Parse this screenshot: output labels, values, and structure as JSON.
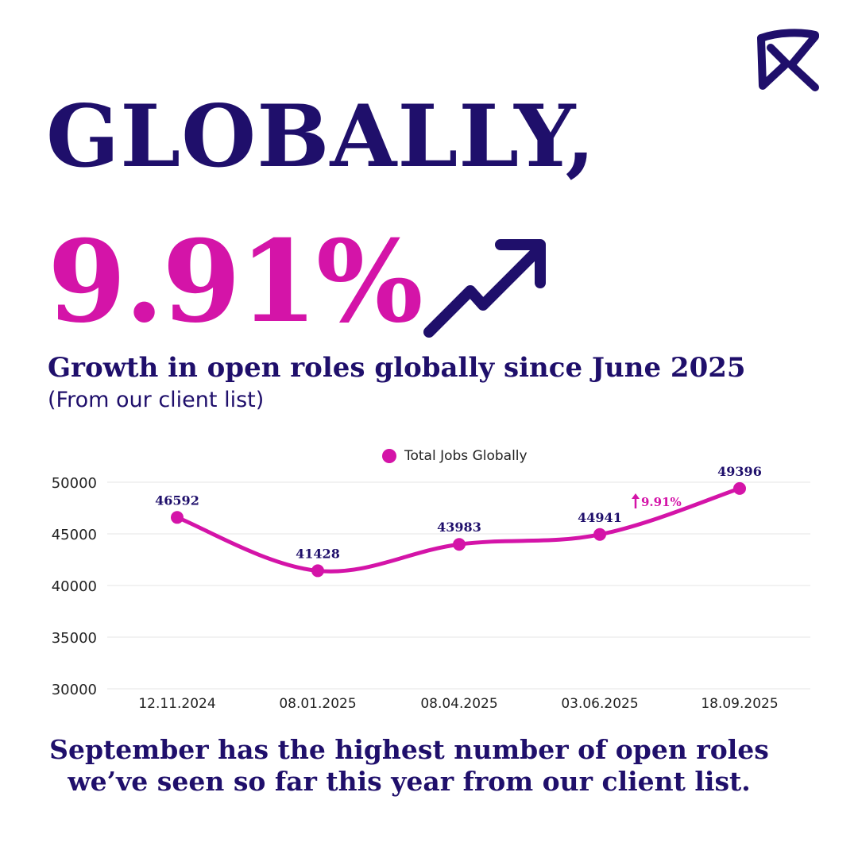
{
  "colors": {
    "navy": "#1f0f6b",
    "magenta": "#d414a8",
    "grid": "#e6e6e6",
    "axis_text": "#222222"
  },
  "logo": {
    "icon": "brand-logo-icon"
  },
  "headline": "GLOBALLY,",
  "big_stat": "9.91%",
  "trend_icon": "trend-up-arrow-icon",
  "subtitle": "Growth in open roles globally since June 2025",
  "subnote": "(From our client list)",
  "chart_data": {
    "type": "line",
    "x": [
      "12.11.2024",
      "08.01.2025",
      "08.04.2025",
      "03.06.2025",
      "18.09.2025"
    ],
    "series": [
      {
        "name": "Total Jobs Globally",
        "values": [
          46592,
          41428,
          43983,
          44941,
          49396
        ],
        "color": "#d414a8"
      }
    ],
    "data_labels": [
      "46592",
      "41428",
      "43983",
      "44941",
      "49396"
    ],
    "ylim": [
      30000,
      50000
    ],
    "yticks": [
      50000,
      45000,
      40000,
      35000,
      30000
    ],
    "grid": true,
    "legend": "top-center",
    "annotation": {
      "text": "9.91%",
      "icon": "up-arrow-icon",
      "between": [
        3,
        4
      ]
    }
  },
  "footer": {
    "line1": "September has the highest number of open roles",
    "line2": "we’ve seen so far this year from our client list."
  }
}
